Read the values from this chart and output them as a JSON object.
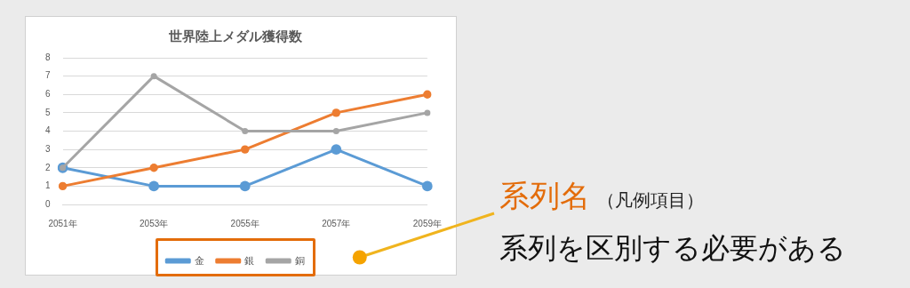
{
  "chart_data": {
    "type": "line",
    "title": "世界陸上メダル獲得数",
    "categories": [
      "2051年",
      "2053年",
      "2055年",
      "2057年",
      "2059年"
    ],
    "series": [
      {
        "name": "金",
        "color": "#5b9bd5",
        "values": [
          2,
          1,
          1,
          3,
          1
        ]
      },
      {
        "name": "銀",
        "color": "#ed7d31",
        "values": [
          1,
          2,
          3,
          5,
          6
        ]
      },
      {
        "name": "銅",
        "color": "#a5a5a5",
        "values": [
          2,
          7,
          4,
          4,
          5
        ]
      }
    ],
    "ylim": [
      0,
      8
    ],
    "yticks": [
      0,
      1,
      2,
      3,
      4,
      5,
      6,
      7,
      8
    ],
    "grid": "y",
    "legend": "bottom",
    "marker": "circle",
    "line_style": "solid",
    "annotations": [
      "系列名",
      "（凡例項目）",
      "系列を区別する必要がある"
    ]
  }
}
